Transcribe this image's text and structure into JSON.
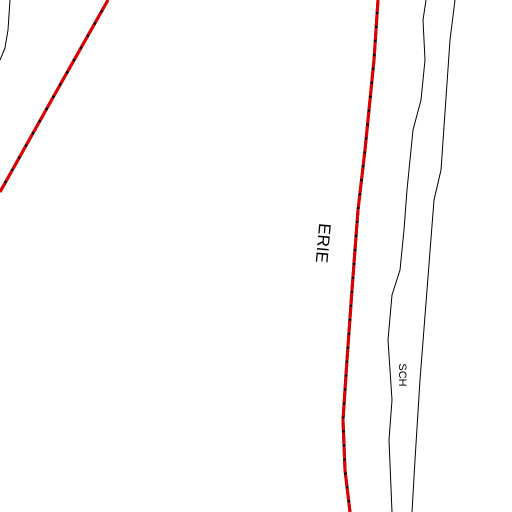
{
  "labels": [
    {
      "text": "ERIE"
    },
    {
      "text": "SCH"
    }
  ]
}
